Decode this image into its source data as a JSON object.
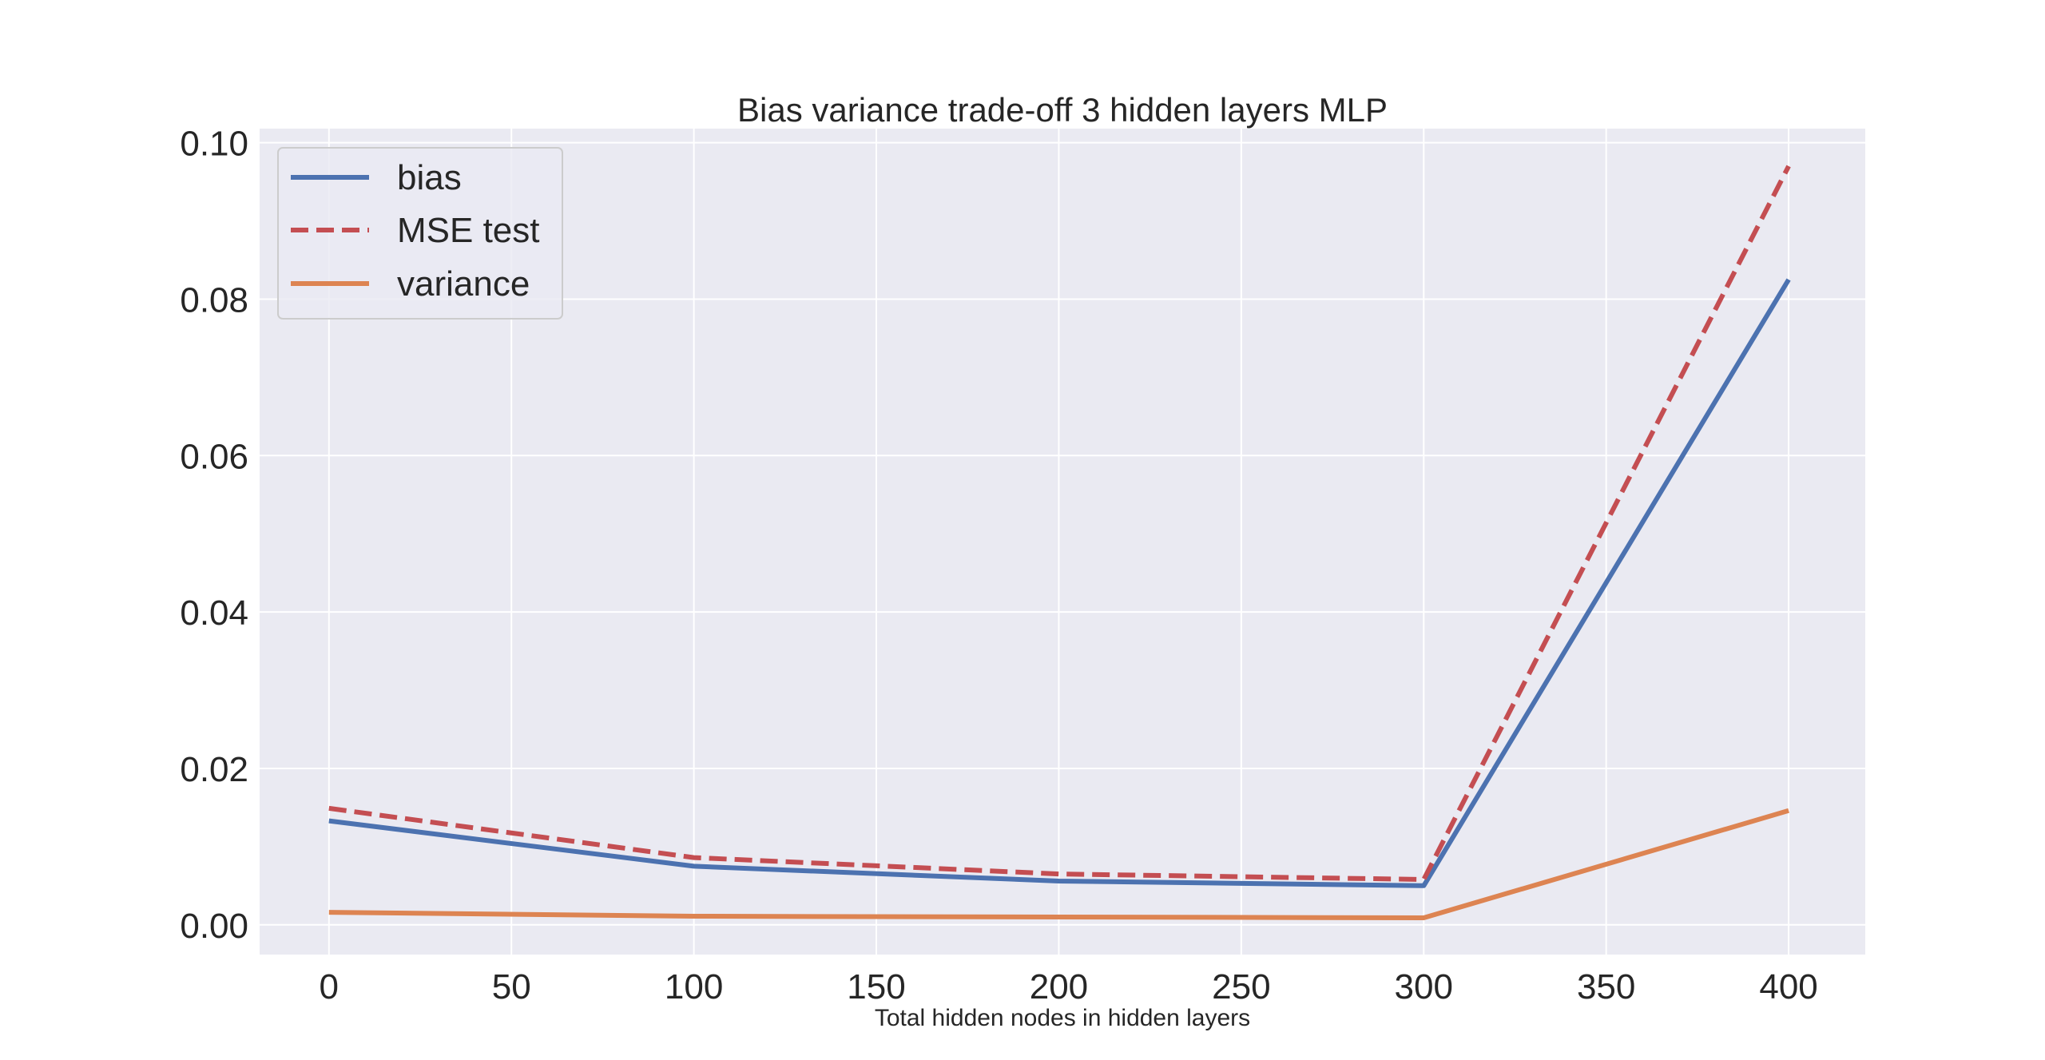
{
  "chart_data": {
    "type": "line",
    "title": "Bias variance trade-off 3 hidden layers MLP",
    "xlabel": "Total hidden nodes in hidden layers",
    "ylabel": "",
    "xlim": [
      -19,
      421
    ],
    "ylim": [
      -0.0038,
      0.1018
    ],
    "xticks": [
      0,
      50,
      100,
      150,
      200,
      250,
      300,
      350,
      400
    ],
    "yticks": [
      0.0,
      0.02,
      0.04,
      0.06,
      0.08,
      0.1
    ],
    "xtick_labels": [
      "0",
      "50",
      "100",
      "150",
      "200",
      "250",
      "300",
      "350",
      "400"
    ],
    "ytick_labels": [
      "0.00",
      "0.02",
      "0.04",
      "0.06",
      "0.08",
      "0.10"
    ],
    "x": [
      0,
      100,
      200,
      300,
      400
    ],
    "grid": true,
    "legend_position": "upper-left",
    "series": [
      {
        "name": "bias",
        "values": [
          0.0133,
          0.0075,
          0.0056,
          0.005,
          0.0825
        ],
        "color": "#4c72b0",
        "style": "solid"
      },
      {
        "name": "MSE test",
        "values": [
          0.0149,
          0.0086,
          0.0065,
          0.0058,
          0.097
        ],
        "color": "#c44e52",
        "style": "dashed"
      },
      {
        "name": "variance",
        "values": [
          0.0016,
          0.0011,
          0.001,
          0.0009,
          0.0146
        ],
        "color": "#dd8452",
        "style": "solid"
      }
    ]
  }
}
